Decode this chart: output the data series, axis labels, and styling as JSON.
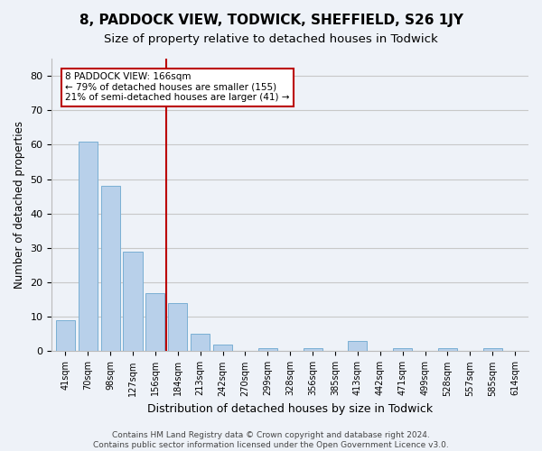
{
  "title": "8, PADDOCK VIEW, TODWICK, SHEFFIELD, S26 1JY",
  "subtitle": "Size of property relative to detached houses in Todwick",
  "xlabel": "Distribution of detached houses by size in Todwick",
  "ylabel": "Number of detached properties",
  "bar_labels": [
    "41sqm",
    "70sqm",
    "98sqm",
    "127sqm",
    "156sqm",
    "184sqm",
    "213sqm",
    "242sqm",
    "270sqm",
    "299sqm",
    "328sqm",
    "356sqm",
    "385sqm",
    "413sqm",
    "442sqm",
    "471sqm",
    "499sqm",
    "528sqm",
    "557sqm",
    "585sqm",
    "614sqm"
  ],
  "bar_values": [
    9,
    61,
    48,
    29,
    17,
    14,
    5,
    2,
    0,
    1,
    0,
    1,
    0,
    3,
    0,
    1,
    0,
    1,
    0,
    1,
    0
  ],
  "bar_color": "#b8d0ea",
  "bar_edge_color": "#7aafd4",
  "vline_x": 4.5,
  "vline_color": "#bb0000",
  "annotation_line1": "8 PADDOCK VIEW: 166sqm",
  "annotation_line2": "← 79% of detached houses are smaller (155)",
  "annotation_line3": "21% of semi-detached houses are larger (41) →",
  "annotation_box_color": "white",
  "annotation_box_edge_color": "#bb0000",
  "ylim": [
    0,
    85
  ],
  "yticks": [
    0,
    10,
    20,
    30,
    40,
    50,
    60,
    70,
    80
  ],
  "grid_color": "#c8c8c8",
  "background_color": "#eef2f8",
  "footer_text": "Contains HM Land Registry data © Crown copyright and database right 2024.\nContains public sector information licensed under the Open Government Licence v3.0.",
  "title_fontsize": 11,
  "subtitle_fontsize": 9.5,
  "xlabel_fontsize": 9,
  "ylabel_fontsize": 8.5,
  "footer_fontsize": 6.5
}
